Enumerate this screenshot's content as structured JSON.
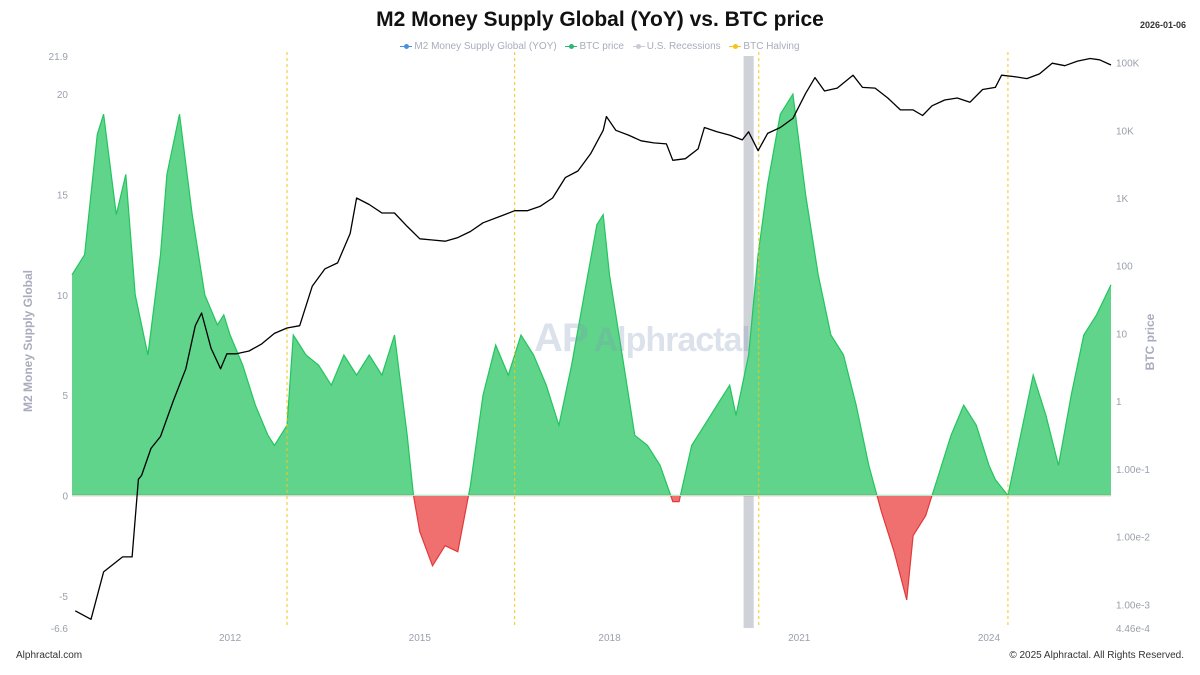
{
  "title": "M2 Money Supply Global (YoY) vs. BTC price",
  "date": "2026-01-06",
  "legend": [
    {
      "label": "M2 Money Supply Global (YOY)",
      "color": "#4a90e2",
      "icon": "line-dot-icon"
    },
    {
      "label": "BTC price",
      "color": "#2bb673",
      "icon": "line-dot-icon"
    },
    {
      "label": "U.S. Recessions",
      "color": "#c9ccd3",
      "icon": "line-dot-icon"
    },
    {
      "label": "BTC Halving",
      "color": "#f5c518",
      "icon": "line-dot-icon"
    }
  ],
  "footer_left": "Alphractal.com",
  "footer_right": "© 2025 Alphractal. All Rights Reserved.",
  "watermark": "Alphractal",
  "watermark_mark": "AP",
  "colors": {
    "positive_fill": "#5fd48a",
    "positive_stroke": "#22c55e",
    "negative_fill": "#f07070",
    "negative_stroke": "#e03a3a",
    "btc_line": "#000000",
    "halving": "#f5c518",
    "recession": "#cfd2d8",
    "tick_text": "#9aa0ac"
  },
  "chart_data": {
    "type": "area",
    "xlabel": "",
    "xlim": [
      2009.5,
      2025.93
    ],
    "x_ticks": [
      2012,
      2015,
      2018,
      2021,
      2024
    ],
    "left_axis": {
      "label": "M2 Money Supply Global",
      "ylim": [
        -6.6,
        21.9
      ],
      "ticks": [
        -6.6,
        -5,
        0,
        5,
        10,
        15,
        20,
        21.9
      ],
      "tick_labels": [
        "-6.6",
        "-5",
        "0",
        "5",
        "10",
        "15",
        "20",
        "21.9"
      ]
    },
    "right_axis": {
      "label": "BTC price",
      "scale": "log",
      "ylim": [
        0.000446,
        125000
      ],
      "ticks": [
        0.000446,
        0.001,
        0.01,
        0.1,
        1,
        10,
        100,
        1000,
        10000,
        100000
      ],
      "tick_labels": [
        "4.46e-4",
        "1.00e-3",
        "1.00e-2",
        "1.00e-1",
        "1",
        "10",
        "100",
        "1K",
        "10K",
        "100K"
      ]
    },
    "halvings": [
      2012.9,
      2016.5,
      2020.36,
      2024.3
    ],
    "recessions": [
      [
        2020.12,
        2020.28
      ]
    ],
    "series": [
      {
        "name": "M2 Money Supply Global (YOY)",
        "axis": "left",
        "x": [
          2009.5,
          2009.7,
          2009.9,
          2010.0,
          2010.2,
          2010.35,
          2010.5,
          2010.7,
          2010.9,
          2011.0,
          2011.2,
          2011.4,
          2011.6,
          2011.8,
          2011.9,
          2012.0,
          2012.2,
          2012.4,
          2012.6,
          2012.7,
          2012.9,
          2013.0,
          2013.2,
          2013.4,
          2013.6,
          2013.8,
          2014.0,
          2014.2,
          2014.4,
          2014.6,
          2014.8,
          2014.9,
          2015.0,
          2015.2,
          2015.4,
          2015.6,
          2015.8,
          2016.0,
          2016.2,
          2016.4,
          2016.6,
          2016.8,
          2017.0,
          2017.2,
          2017.4,
          2017.6,
          2017.8,
          2017.9,
          2018.0,
          2018.2,
          2018.4,
          2018.6,
          2018.8,
          2019.0,
          2019.1,
          2019.3,
          2019.5,
          2019.7,
          2019.9,
          2020.0,
          2020.2,
          2020.35,
          2020.5,
          2020.7,
          2020.9,
          2021.1,
          2021.3,
          2021.5,
          2021.7,
          2021.9,
          2022.1,
          2022.3,
          2022.5,
          2022.7,
          2022.8,
          2023.0,
          2023.2,
          2023.4,
          2023.6,
          2023.8,
          2024.0,
          2024.1,
          2024.3,
          2024.5,
          2024.7,
          2024.9,
          2025.1,
          2025.3,
          2025.5,
          2025.7,
          2025.93
        ],
        "values": [
          11,
          12,
          18,
          19,
          14,
          16,
          10,
          7,
          12,
          16,
          19,
          14,
          10,
          8.5,
          9,
          8,
          6.5,
          4.5,
          3,
          2.5,
          3.5,
          8,
          7,
          6.5,
          5.5,
          7,
          6,
          7,
          6,
          8,
          3,
          0,
          -1.8,
          -3.5,
          -2.5,
          -2.8,
          0.5,
          5,
          7.5,
          6,
          8,
          7,
          5.5,
          3.5,
          6.5,
          10,
          13.5,
          14,
          11,
          7,
          3,
          2.5,
          1.5,
          -0.3,
          -0.3,
          2.5,
          3.5,
          4.5,
          5.5,
          4,
          7,
          12,
          15.5,
          19,
          20,
          15,
          11,
          8,
          7,
          4.5,
          1.5,
          -0.8,
          -2.8,
          -5.2,
          -2,
          -1,
          1,
          3,
          4.5,
          3.5,
          1.5,
          0.8,
          0,
          3,
          6,
          4,
          1.5,
          5,
          8,
          9,
          10.5
        ]
      },
      {
        "name": "BTC price",
        "axis": "right",
        "x": [
          2009.55,
          2009.8,
          2010.0,
          2010.3,
          2010.45,
          2010.55,
          2010.6,
          2010.75,
          2010.9,
          2011.1,
          2011.3,
          2011.45,
          2011.55,
          2011.7,
          2011.85,
          2011.95,
          2012.1,
          2012.3,
          2012.5,
          2012.7,
          2012.9,
          2013.1,
          2013.3,
          2013.5,
          2013.7,
          2013.9,
          2014.0,
          2014.2,
          2014.4,
          2014.6,
          2014.8,
          2015.0,
          2015.2,
          2015.4,
          2015.6,
          2015.8,
          2016.0,
          2016.3,
          2016.5,
          2016.7,
          2016.9,
          2017.1,
          2017.3,
          2017.5,
          2017.7,
          2017.9,
          2017.95,
          2018.1,
          2018.3,
          2018.5,
          2018.7,
          2018.9,
          2019.0,
          2019.2,
          2019.4,
          2019.5,
          2019.7,
          2019.9,
          2020.1,
          2020.2,
          2020.35,
          2020.5,
          2020.7,
          2020.9,
          2021.1,
          2021.25,
          2021.4,
          2021.6,
          2021.85,
          2022.0,
          2022.2,
          2022.4,
          2022.6,
          2022.8,
          2022.95,
          2023.1,
          2023.3,
          2023.5,
          2023.7,
          2023.9,
          2024.1,
          2024.2,
          2024.4,
          2024.6,
          2024.8,
          2025.0,
          2025.2,
          2025.4,
          2025.6,
          2025.75,
          2025.93
        ],
        "values": [
          0.0008,
          0.0006,
          0.003,
          0.005,
          0.005,
          0.07,
          0.08,
          0.2,
          0.3,
          1,
          3,
          13,
          20,
          6,
          3,
          5,
          5,
          5.5,
          7,
          10,
          12,
          13,
          50,
          90,
          110,
          300,
          1000,
          800,
          600,
          600,
          380,
          250,
          240,
          230,
          260,
          320,
          430,
          550,
          650,
          650,
          750,
          1000,
          2000,
          2500,
          4500,
          10000,
          16000,
          10000,
          8500,
          7000,
          6500,
          6300,
          3600,
          3800,
          5300,
          11000,
          9500,
          8500,
          7200,
          9500,
          5000,
          9000,
          11000,
          15000,
          35000,
          60000,
          38000,
          42000,
          65000,
          43000,
          42000,
          30000,
          20000,
          20000,
          16500,
          23000,
          28000,
          30000,
          26000,
          40000,
          43000,
          65000,
          62000,
          58000,
          68000,
          98000,
          90000,
          105000,
          115000,
          110000,
          92000
        ]
      }
    ]
  }
}
